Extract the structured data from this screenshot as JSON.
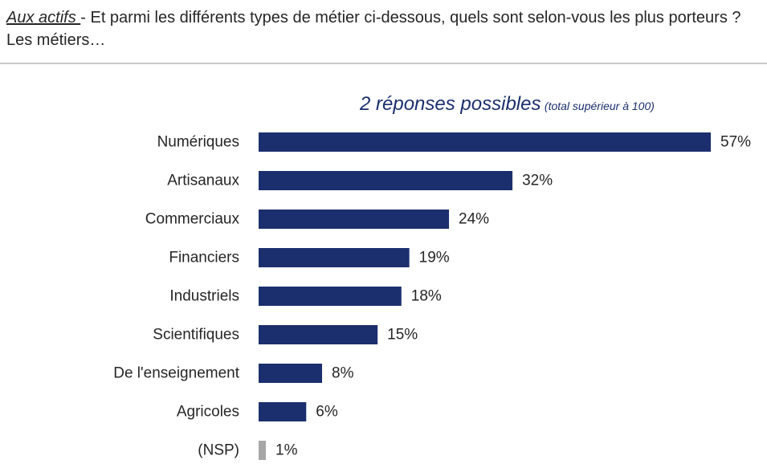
{
  "header": {
    "question_audience": "Aux actifs ",
    "question_text": "- Et parmi les différents types de métier ci-dessous, quels sont selon-vous les plus porteurs ? Les métiers…"
  },
  "chart_data": {
    "type": "bar",
    "orientation": "horizontal",
    "subtitle": "2 réponses possibles",
    "subtitle_note": "(total supérieur à 100)",
    "categories": [
      "Numériques",
      "Artisanaux",
      "Commerciaux",
      "Financiers",
      "Industriels",
      "Scientifiques",
      "De l'enseignement",
      "Agricoles",
      "(NSP)"
    ],
    "values": [
      57,
      32,
      24,
      19,
      18,
      15,
      8,
      6,
      1
    ],
    "value_labels": [
      "57%",
      "32%",
      "24%",
      "19%",
      "18%",
      "15%",
      "8%",
      "6%",
      "1%"
    ],
    "unit": "%",
    "xlim": [
      0,
      57
    ],
    "grid": false,
    "legend": "none",
    "colors": {
      "bar": "#1b2f6e",
      "bar_nsp": "#a6a6a6"
    }
  }
}
